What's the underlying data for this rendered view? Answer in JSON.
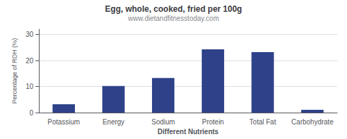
{
  "chart_data": {
    "type": "bar",
    "title": "Egg, whole, cooked, fried per 100g",
    "subtitle": "www.dietandfitnesstoday.com",
    "xlabel": "Different Nutrients",
    "ylabel": "Percentage of RDH (%)",
    "categories": [
      "Potassium",
      "Energy",
      "Sodium",
      "Protein",
      "Total Fat",
      "Carbohydrate"
    ],
    "values": [
      3.2,
      10.2,
      13.3,
      24.3,
      23.2,
      1.1
    ],
    "color": "#2e4189",
    "ylim": [
      0,
      32
    ],
    "yticks": [
      0,
      10,
      20,
      30
    ],
    "grid": true
  }
}
